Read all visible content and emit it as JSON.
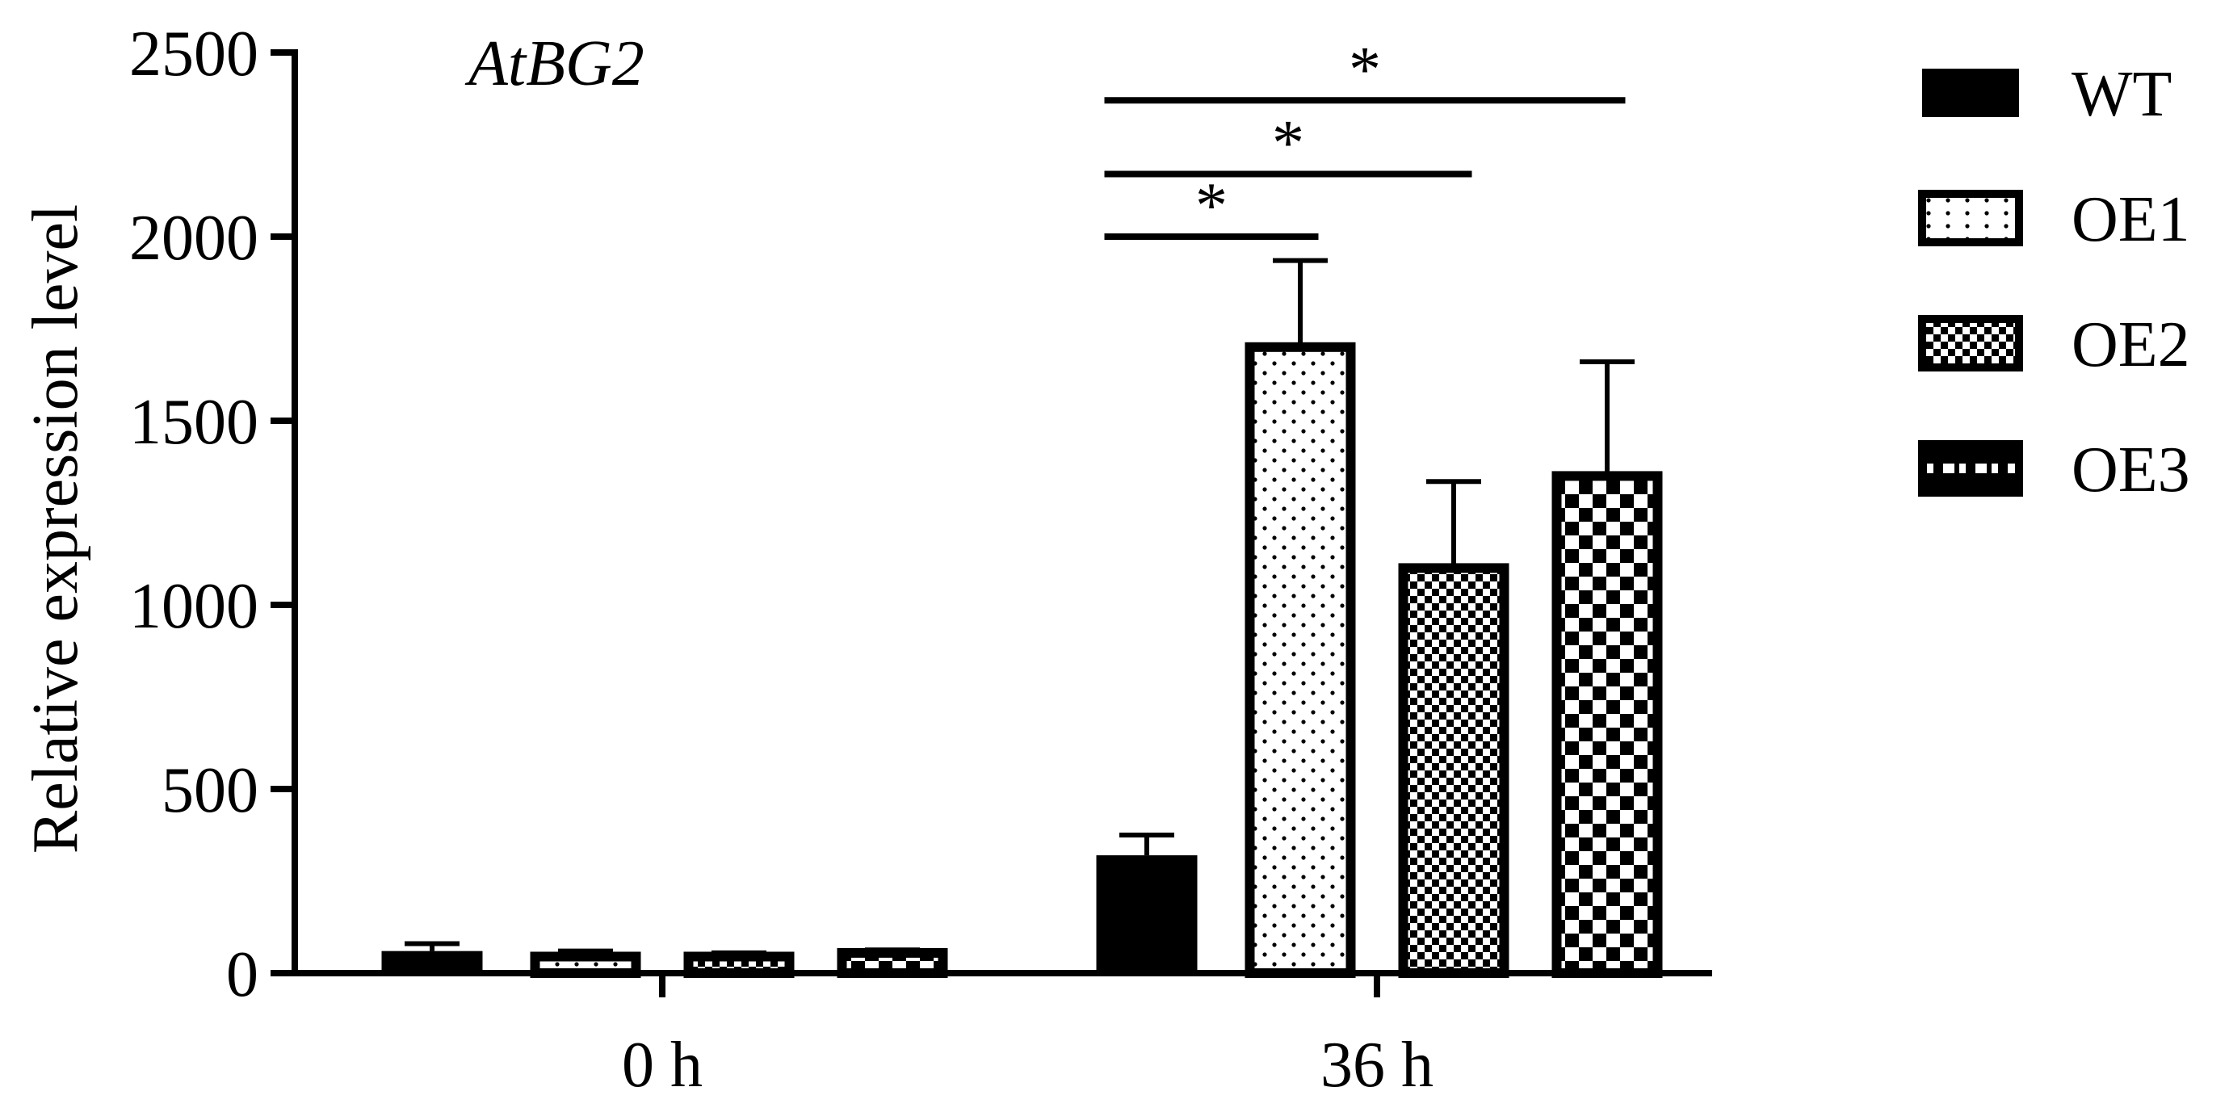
{
  "chart_data": {
    "type": "bar",
    "title": "AtBG2",
    "xlabel": "",
    "ylabel": "Relative expression level",
    "ylim": [
      0,
      2500
    ],
    "yticks": [
      0,
      500,
      1000,
      1500,
      2000,
      2500
    ],
    "categories": [
      "0 h",
      "36 h"
    ],
    "series": [
      {
        "name": "WT",
        "pattern": "solid",
        "values": [
          60,
          320
        ],
        "errors": [
          20,
          55
        ]
      },
      {
        "name": "OE1",
        "pattern": "dots",
        "values": [
          45,
          1700
        ],
        "errors": [
          15,
          235
        ]
      },
      {
        "name": "OE2",
        "pattern": "checker-fine",
        "values": [
          45,
          1100
        ],
        "errors": [
          10,
          235
        ]
      },
      {
        "name": "OE3",
        "pattern": "checker-coarse",
        "values": [
          55,
          1350
        ],
        "errors": [
          8,
          310
        ]
      }
    ],
    "legend_position": "right",
    "significance": [
      {
        "category": "36 h",
        "from": "WT",
        "to": "OE1",
        "label": "*",
        "y": 2000
      },
      {
        "category": "36 h",
        "from": "WT",
        "to": "OE2",
        "label": "*",
        "y": 2170
      },
      {
        "category": "36 h",
        "from": "WT",
        "to": "OE3",
        "label": "*",
        "y": 2370
      }
    ],
    "colors": {
      "ink": "#000000",
      "paper": "#ffffff"
    }
  }
}
